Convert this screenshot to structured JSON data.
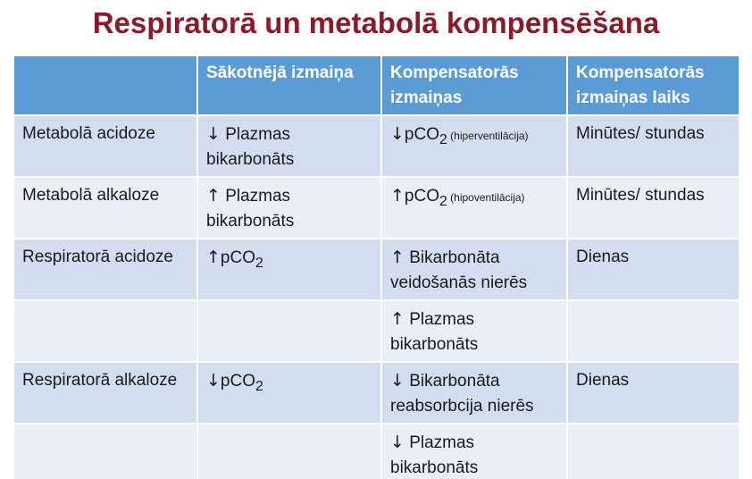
{
  "slide": {
    "title": "Respiratorā un metabolā kompensēšana"
  },
  "table": {
    "headers": [
      "",
      "Sākotnējā izmaiņa",
      "Kompensatorās izmaiņas",
      "Kompensatorās izmaiņas laiks"
    ],
    "rows": [
      {
        "condition": "Metabolā acidoze",
        "initial_arrow": "↓",
        "initial_text": "Plazmas bikarbonāts",
        "comp_arrow": "↓",
        "comp_text": "pCO",
        "comp_sub": "2",
        "comp_note": "(hiperventilācija)",
        "time": "Minūtes/ stundas"
      },
      {
        "condition": "Metabolā alkaloze",
        "initial_arrow": "↑",
        "initial_text": "Plazmas bikarbonāts",
        "comp_arrow": "↑",
        "comp_text": "pCO",
        "comp_sub": "2",
        "comp_note": "(hipoventilācija)",
        "time": "Minūtes/ stundas"
      },
      {
        "condition": "Respiratorā acidoze",
        "initial_arrow": "↑",
        "initial_text": "pCO",
        "initial_sub": "2",
        "comp_arrow": "↑",
        "comp_text": "Bikarbonāta veidošanās nierēs",
        "time": "Dienas"
      },
      {
        "condition": "",
        "comp_arrow": "↑",
        "comp_text": "Plazmas bikarbonāts",
        "time": ""
      },
      {
        "condition": "Respiratorā alkaloze",
        "initial_arrow": "↓",
        "initial_text": "pCO",
        "initial_sub": "2",
        "comp_arrow": "↓",
        "comp_text": "Bikarbonāta reabsorbcija nierēs",
        "time": "Dienas"
      },
      {
        "condition": "",
        "comp_arrow": "↓",
        "comp_text": "Plazmas bikarbonāts",
        "time": ""
      }
    ]
  }
}
